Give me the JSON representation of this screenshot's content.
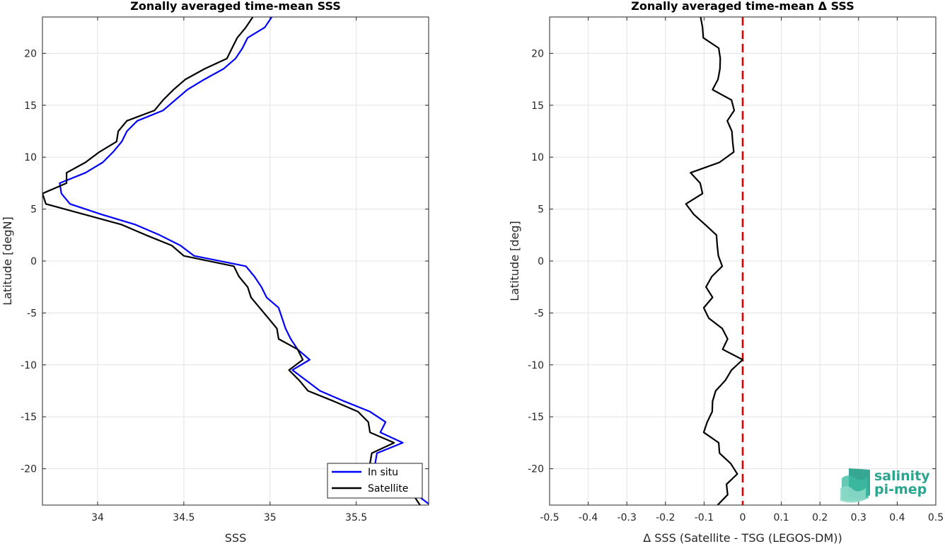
{
  "chart_data": [
    {
      "type": "line",
      "title": "Zonally averaged time-mean SSS",
      "xlabel": "SSS",
      "ylabel": "Latitude [degN]",
      "xlim": [
        33.68,
        35.92
      ],
      "ylim": [
        -23.5,
        23.5
      ],
      "xticks": [
        34,
        34.5,
        35,
        35.5
      ],
      "yticks": [
        -20,
        -15,
        -10,
        -5,
        0,
        5,
        10,
        15,
        20
      ],
      "grid": true,
      "legend_position": "bottom-right",
      "series": [
        {
          "name": "In situ",
          "color": "#0000ff",
          "points": [
            [
              35.01,
              23.5
            ],
            [
              34.97,
              22.5
            ],
            [
              34.87,
              21.5
            ],
            [
              34.84,
              20.5
            ],
            [
              34.8,
              19.5
            ],
            [
              34.73,
              18.5
            ],
            [
              34.62,
              17.5
            ],
            [
              34.52,
              16.5
            ],
            [
              34.45,
              15.5
            ],
            [
              34.38,
              14.5
            ],
            [
              34.23,
              13.5
            ],
            [
              34.17,
              12.5
            ],
            [
              34.14,
              11.5
            ],
            [
              34.09,
              10.5
            ],
            [
              34.03,
              9.5
            ],
            [
              33.93,
              8.5
            ],
            [
              33.78,
              7.5
            ],
            [
              33.79,
              6.5
            ],
            [
              33.84,
              5.5
            ],
            [
              34.02,
              4.5
            ],
            [
              34.22,
              3.5
            ],
            [
              34.36,
              2.5
            ],
            [
              34.48,
              1.5
            ],
            [
              34.56,
              0.5
            ],
            [
              34.86,
              -0.5
            ],
            [
              34.91,
              -1.5
            ],
            [
              34.95,
              -2.5
            ],
            [
              34.98,
              -3.5
            ],
            [
              35.05,
              -4.5
            ],
            [
              35.07,
              -5.5
            ],
            [
              35.09,
              -6.5
            ],
            [
              35.12,
              -7.5
            ],
            [
              35.16,
              -8.5
            ],
            [
              35.23,
              -9.5
            ],
            [
              35.13,
              -10.5
            ],
            [
              35.21,
              -11.5
            ],
            [
              35.29,
              -12.5
            ],
            [
              35.43,
              -13.5
            ],
            [
              35.58,
              -14.5
            ],
            [
              35.67,
              -15.5
            ],
            [
              35.64,
              -16.5
            ],
            [
              35.77,
              -17.5
            ],
            [
              35.62,
              -18.5
            ],
            [
              35.61,
              -19.5
            ],
            [
              35.63,
              -20.5
            ],
            [
              35.77,
              -21.5
            ],
            [
              35.85,
              -22.5
            ],
            [
              35.93,
              -23.5
            ]
          ]
        },
        {
          "name": "Satellite",
          "color": "#000000",
          "points": [
            [
              34.9,
              23.5
            ],
            [
              34.86,
              22.5
            ],
            [
              34.81,
              21.5
            ],
            [
              34.78,
              20.5
            ],
            [
              34.75,
              19.5
            ],
            [
              34.62,
              18.5
            ],
            [
              34.51,
              17.5
            ],
            [
              34.44,
              16.5
            ],
            [
              34.38,
              15.5
            ],
            [
              34.33,
              14.5
            ],
            [
              34.17,
              13.5
            ],
            [
              34.12,
              12.5
            ],
            [
              34.11,
              11.5
            ],
            [
              34.01,
              10.5
            ],
            [
              33.93,
              9.5
            ],
            [
              33.82,
              8.5
            ],
            [
              33.82,
              7.5
            ],
            [
              33.68,
              6.5
            ],
            [
              33.7,
              5.5
            ],
            [
              33.92,
              4.5
            ],
            [
              34.14,
              3.5
            ],
            [
              34.28,
              2.5
            ],
            [
              34.43,
              1.5
            ],
            [
              34.5,
              0.5
            ],
            [
              34.79,
              -0.5
            ],
            [
              34.82,
              -1.5
            ],
            [
              34.87,
              -2.5
            ],
            [
              34.89,
              -3.5
            ],
            [
              34.94,
              -4.5
            ],
            [
              34.99,
              -5.5
            ],
            [
              35.04,
              -6.5
            ],
            [
              35.05,
              -7.5
            ],
            [
              35.16,
              -8.5
            ],
            [
              35.19,
              -9.5
            ],
            [
              35.11,
              -10.5
            ],
            [
              35.17,
              -11.5
            ],
            [
              35.22,
              -12.5
            ],
            [
              35.37,
              -13.5
            ],
            [
              35.51,
              -14.5
            ],
            [
              35.57,
              -15.5
            ],
            [
              35.58,
              -16.5
            ],
            [
              35.72,
              -17.5
            ],
            [
              35.59,
              -18.5
            ],
            [
              35.58,
              -19.5
            ],
            [
              35.6,
              -20.5
            ],
            [
              35.69,
              -21.5
            ],
            [
              35.83,
              -22.5
            ],
            [
              35.87,
              -23.5
            ]
          ]
        }
      ]
    },
    {
      "type": "line",
      "title": "Zonally averaged time-mean Δ SSS",
      "xlabel": "Δ SSS (Satellite - TSG (LEGOS-DM))",
      "ylabel": "Latitude [deg]",
      "xlim": [
        -0.5,
        0.5
      ],
      "ylim": [
        -23.5,
        23.5
      ],
      "xticks": [
        -0.5,
        -0.4,
        -0.3,
        -0.2,
        -0.1,
        0,
        0.1,
        0.2,
        0.3,
        0.4,
        0.5
      ],
      "yticks": [
        -20,
        -15,
        -10,
        -5,
        0,
        5,
        10,
        15,
        20
      ],
      "grid": true,
      "reference_line": {
        "x": 0,
        "color": "#e00000",
        "style": "dashed"
      },
      "series": [
        {
          "color": "#000000",
          "points": [
            [
              -0.109,
              23.5
            ],
            [
              -0.104,
              22.5
            ],
            [
              -0.102,
              21.5
            ],
            [
              -0.062,
              20.5
            ],
            [
              -0.058,
              19.5
            ],
            [
              -0.059,
              18.5
            ],
            [
              -0.064,
              17.5
            ],
            [
              -0.078,
              16.5
            ],
            [
              -0.029,
              15.5
            ],
            [
              -0.022,
              14.5
            ],
            [
              -0.04,
              13.5
            ],
            [
              -0.028,
              12.5
            ],
            [
              -0.026,
              11.5
            ],
            [
              -0.023,
              10.5
            ],
            [
              -0.06,
              9.5
            ],
            [
              -0.135,
              8.5
            ],
            [
              -0.11,
              7.5
            ],
            [
              -0.104,
              6.5
            ],
            [
              -0.147,
              5.5
            ],
            [
              -0.127,
              4.5
            ],
            [
              -0.097,
              3.5
            ],
            [
              -0.068,
              2.5
            ],
            [
              -0.066,
              1.5
            ],
            [
              -0.063,
              0.5
            ],
            [
              -0.053,
              -0.5
            ],
            [
              -0.08,
              -1.5
            ],
            [
              -0.095,
              -2.5
            ],
            [
              -0.078,
              -3.5
            ],
            [
              -0.101,
              -4.5
            ],
            [
              -0.088,
              -5.5
            ],
            [
              -0.053,
              -6.5
            ],
            [
              -0.039,
              -7.5
            ],
            [
              -0.052,
              -8.5
            ],
            [
              0.0,
              -9.5
            ],
            [
              -0.029,
              -10.5
            ],
            [
              -0.045,
              -11.5
            ],
            [
              -0.07,
              -12.5
            ],
            [
              -0.078,
              -13.5
            ],
            [
              -0.079,
              -14.5
            ],
            [
              -0.092,
              -15.5
            ],
            [
              -0.101,
              -16.5
            ],
            [
              -0.062,
              -17.5
            ],
            [
              -0.06,
              -18.5
            ],
            [
              -0.031,
              -19.5
            ],
            [
              -0.014,
              -20.5
            ],
            [
              -0.042,
              -21.5
            ],
            [
              -0.039,
              -22.5
            ],
            [
              -0.065,
              -23.5
            ]
          ]
        }
      ]
    }
  ],
  "logo": {
    "line1": "salinity",
    "line2": "pi-mep"
  }
}
